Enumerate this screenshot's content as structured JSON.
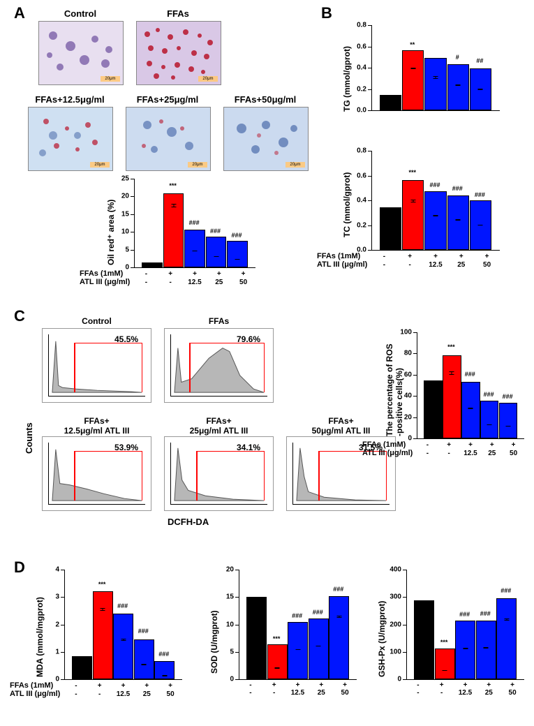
{
  "colors": {
    "black": "#000000",
    "red": "#ff0000",
    "blue": "#0015ff",
    "grid": "#ffffff",
    "flow_fill": "#b7b7b7"
  },
  "treatment_rows": {
    "ffas_label": "FFAs (1mM)",
    "atl_label": "ATL III (μg/ml)",
    "ffas": [
      "-",
      "+",
      "+",
      "+",
      "+"
    ],
    "atl": [
      "-",
      "-",
      "12.5",
      "25",
      "50"
    ]
  },
  "panelA": {
    "label": "A",
    "micrographs": [
      {
        "label": "Control",
        "scalebar": "20μm"
      },
      {
        "label": "FFAs",
        "scalebar": "20μm"
      },
      {
        "label": "FFAs+12.5μg/ml",
        "scalebar": "20μm"
      },
      {
        "label": "FFAs+25μg/ml",
        "scalebar": "20μm"
      },
      {
        "label": "FFAs+50μg/ml",
        "scalebar": "20μm"
      }
    ],
    "chart": {
      "type": "bar",
      "ylabel": "Oil red⁺ area (%)",
      "ylim": [
        0,
        25
      ],
      "ytick_step": 5,
      "values": [
        1,
        20.5,
        10.3,
        8.2,
        7.1
      ],
      "errors": [
        0.3,
        1.0,
        0.8,
        0.6,
        0.5
      ],
      "colors": [
        "black",
        "red",
        "blue",
        "blue",
        "blue"
      ],
      "sig": [
        "",
        "***",
        "###",
        "###",
        "###"
      ]
    }
  },
  "panelB": {
    "label": "B",
    "tg": {
      "type": "bar",
      "ylabel": "TG (mmol/gprot)",
      "ylim": [
        0,
        0.8
      ],
      "ytick_step": 0.2,
      "values": [
        0.13,
        0.55,
        0.48,
        0.42,
        0.38
      ],
      "errors": [
        0.03,
        0.02,
        0.05,
        0.03,
        0.04
      ],
      "colors": [
        "black",
        "red",
        "blue",
        "blue",
        "blue"
      ],
      "sig": [
        "",
        "**",
        "",
        "#",
        "##"
      ]
    },
    "tc": {
      "type": "bar",
      "ylabel": "TC (mmol/gprot)",
      "ylim": [
        0,
        0.8
      ],
      "ytick_step": 0.2,
      "values": [
        0.33,
        0.55,
        0.46,
        0.43,
        0.39
      ],
      "errors": [
        0.02,
        0.03,
        0.02,
        0.02,
        0.01
      ],
      "colors": [
        "black",
        "red",
        "blue",
        "blue",
        "blue"
      ],
      "sig": [
        "",
        "***",
        "###",
        "###",
        "###"
      ]
    }
  },
  "panelC": {
    "label": "C",
    "counts_label": "Counts",
    "xlabel": "DCFH-DA",
    "flows": [
      {
        "title": "Control",
        "pct": "45.5%"
      },
      {
        "title": "FFAs",
        "pct": "79.6%"
      },
      {
        "title": "FFAs+\n12.5μg/ml ATL III",
        "pct": "53.9%"
      },
      {
        "title": "FFAs+\n25μg/ml ATL III",
        "pct": "34.1%"
      },
      {
        "title": "FFAs+\n50μg/ml ATL III",
        "pct": "31.5%"
      }
    ],
    "chart": {
      "type": "bar",
      "ylabel": "The percentage of ROS\n-positive cells(%)",
      "ylim": [
        0,
        100
      ],
      "ytick_step": 20,
      "values": [
        53,
        77,
        52,
        34,
        32
      ],
      "errors": [
        8,
        4,
        3,
        2,
        2
      ],
      "colors": [
        "black",
        "red",
        "blue",
        "blue",
        "blue"
      ],
      "sig": [
        "",
        "***",
        "###",
        "###",
        "###"
      ]
    }
  },
  "panelD": {
    "label": "D",
    "mda": {
      "type": "bar",
      "ylabel": "MDA (mmol/mgprot)",
      "ylim": [
        0,
        4
      ],
      "ytick_step": 1,
      "values": [
        0.78,
        3.15,
        2.35,
        1.4,
        0.62
      ],
      "errors": [
        0.15,
        0.12,
        0.12,
        0.15,
        0.08
      ],
      "colors": [
        "black",
        "red",
        "blue",
        "blue",
        "blue"
      ],
      "sig": [
        "",
        "***",
        "###",
        "###",
        "###"
      ]
    },
    "sod": {
      "type": "bar",
      "ylabel": "SOD (U/mgprot)",
      "ylim": [
        0,
        20
      ],
      "ytick_step": 5,
      "values": [
        14.8,
        6.1,
        10.2,
        10.8,
        14.9
      ],
      "errors": [
        0.5,
        0.3,
        0.4,
        0.4,
        0.5
      ],
      "colors": [
        "black",
        "red",
        "blue",
        "blue",
        "blue"
      ],
      "sig": [
        "",
        "***",
        "###",
        "###",
        "###"
      ]
    },
    "gsh": {
      "type": "bar",
      "ylabel": "GSH-Px (U/mgprot)",
      "ylim": [
        0,
        400
      ],
      "ytick_step": 100,
      "values": [
        283,
        106,
        208,
        210,
        291
      ],
      "errors": [
        10,
        8,
        8,
        8,
        12
      ],
      "colors": [
        "black",
        "red",
        "blue",
        "blue",
        "blue"
      ],
      "sig": [
        "",
        "***",
        "###",
        "###",
        "###"
      ]
    }
  }
}
